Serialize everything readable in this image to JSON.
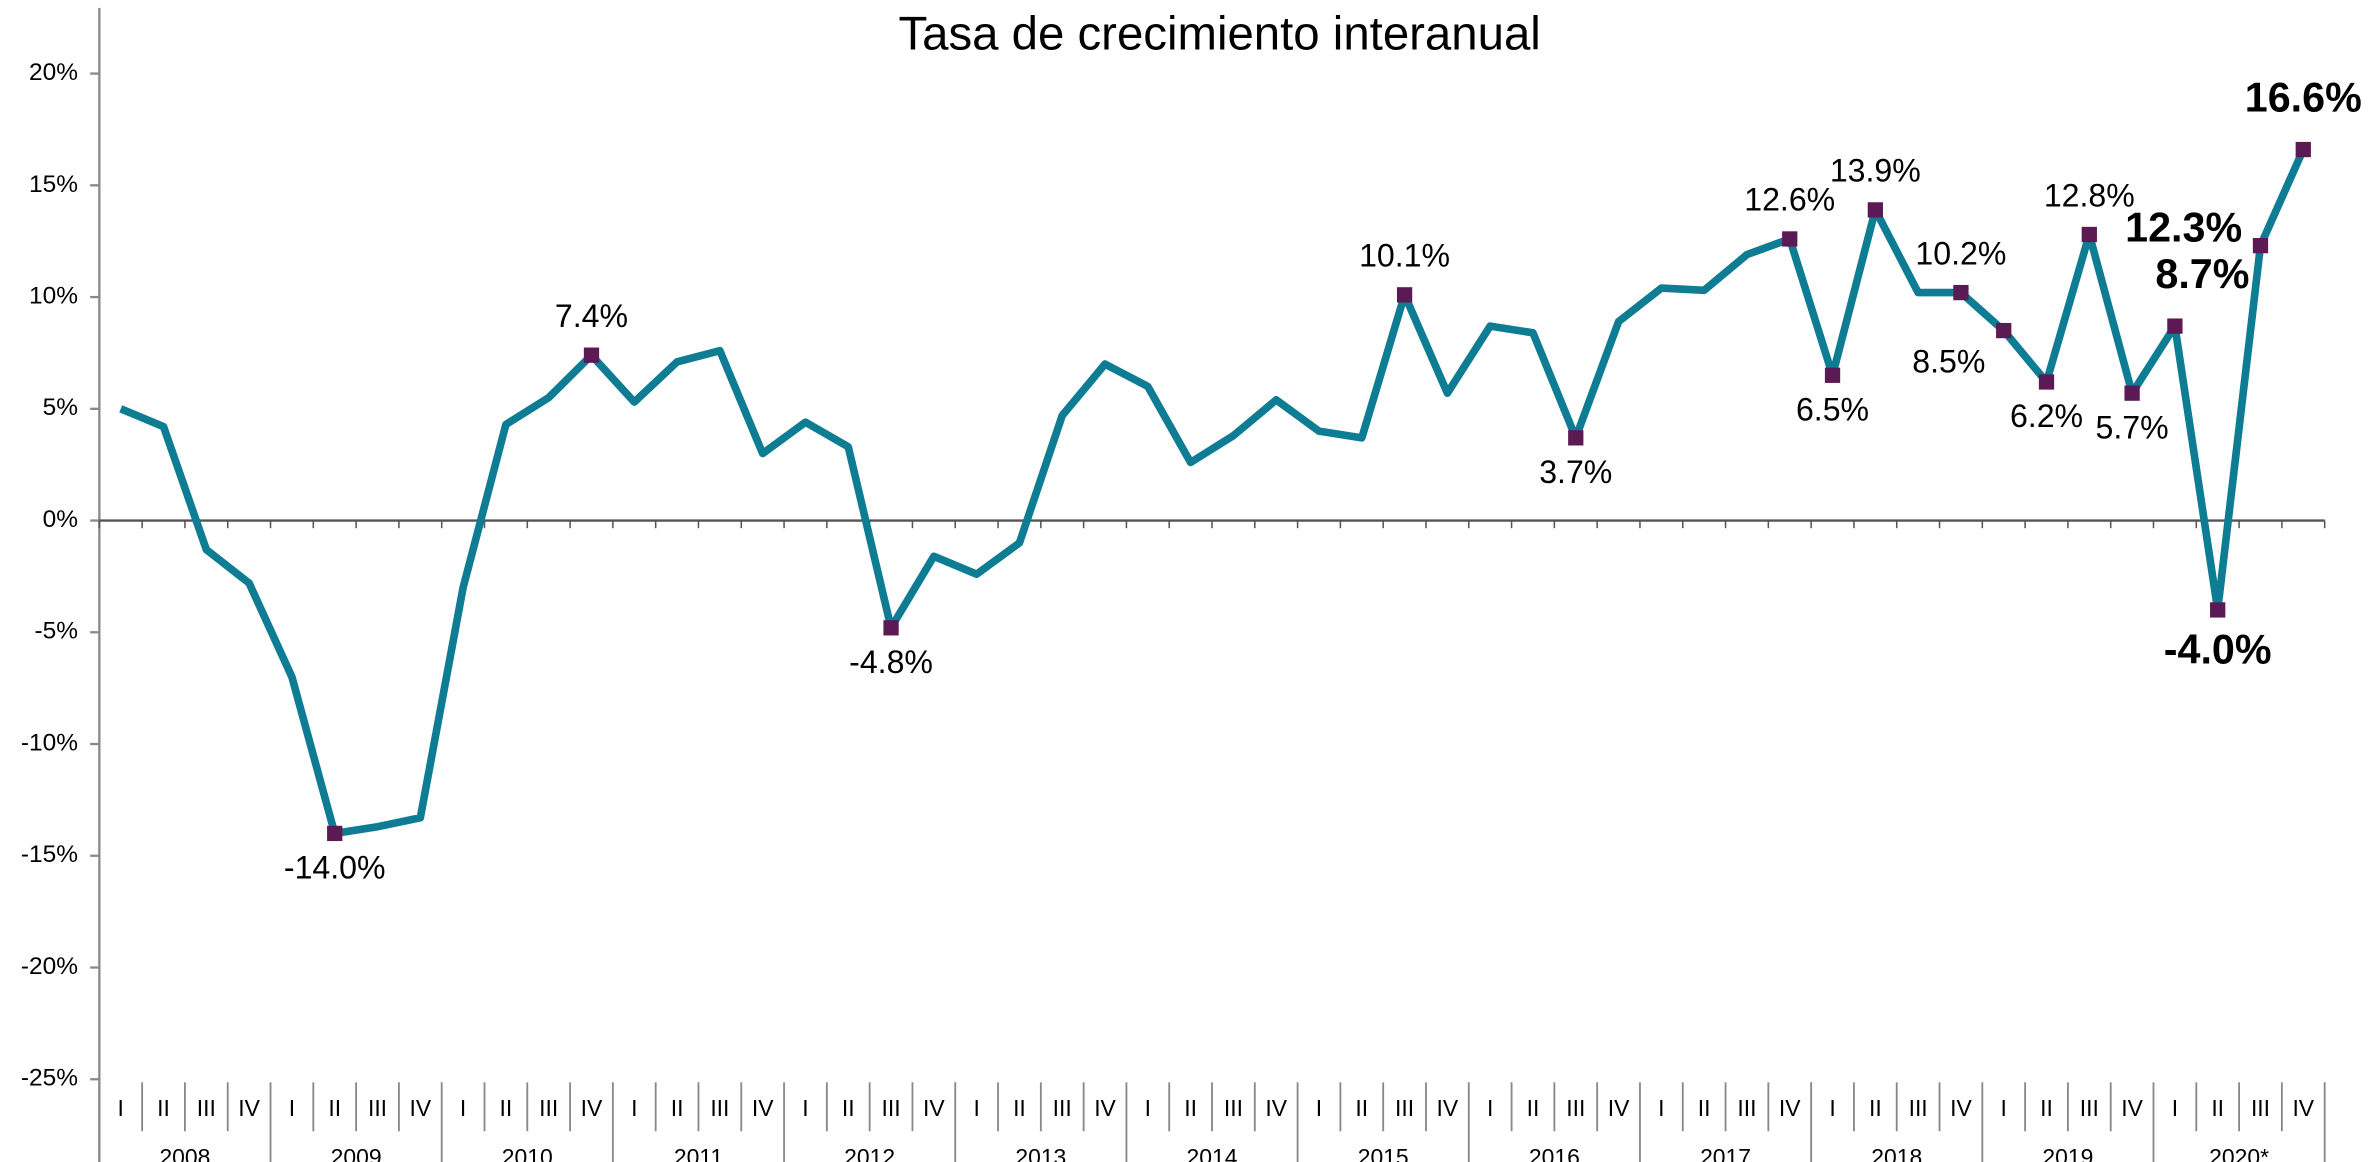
{
  "chart_data": {
    "type": "line",
    "title": "Tasa de crecimiento interanual",
    "categories": [
      "I",
      "II",
      "III",
      "IV",
      "I",
      "II",
      "III",
      "IV",
      "I",
      "II",
      "III",
      "IV",
      "I",
      "II",
      "III",
      "IV",
      "I",
      "II",
      "III",
      "IV",
      "I",
      "II",
      "III",
      "IV",
      "I",
      "II",
      "III",
      "IV",
      "I",
      "II",
      "III",
      "IV",
      "I",
      "II",
      "III",
      "IV",
      "I",
      "II",
      "III",
      "IV",
      "I",
      "II",
      "III",
      "IV",
      "I",
      "II",
      "III",
      "IV",
      "I",
      "II",
      "III",
      "IV"
    ],
    "years": [
      "2008",
      "2009",
      "2010",
      "2011",
      "2012",
      "2013",
      "2014",
      "2015",
      "2016",
      "2017",
      "2018",
      "2019",
      "2020*"
    ],
    "series": [
      {
        "color": "#0e7c93",
        "marker_color": "#5c1a55",
        "values": [
          5.0,
          4.2,
          -1.3,
          -2.8,
          -7.0,
          -14.0,
          -13.7,
          -13.3,
          -3.0,
          4.3,
          5.5,
          7.4,
          5.3,
          7.1,
          7.6,
          3.0,
          4.4,
          3.3,
          -4.8,
          -1.6,
          -2.4,
          -1.0,
          4.7,
          7.0,
          6.0,
          2.6,
          3.8,
          5.4,
          4.0,
          3.7,
          10.1,
          5.7,
          8.7,
          8.4,
          3.7,
          8.9,
          10.4,
          10.3,
          11.9,
          12.6,
          6.5,
          13.9,
          10.2,
          10.2,
          8.5,
          6.2,
          12.8,
          5.7,
          8.7,
          -4.0,
          12.3,
          16.6
        ],
        "value_labels": [
          null,
          null,
          null,
          null,
          null,
          "-14.0%",
          null,
          null,
          null,
          null,
          null,
          "7.4%",
          null,
          null,
          null,
          null,
          null,
          null,
          "-4.8%",
          null,
          null,
          null,
          null,
          null,
          null,
          null,
          null,
          null,
          null,
          null,
          "10.1%",
          null,
          null,
          null,
          "3.7%",
          null,
          null,
          null,
          null,
          "12.6%",
          "6.5%",
          "13.9%",
          null,
          "10.2%",
          "8.5%",
          "6.2%",
          "12.8%",
          "5.7%",
          "8.7%",
          "-4.0%",
          "12.3%",
          "16.6%"
        ]
      }
    ],
    "ylim": [
      -25,
      20
    ],
    "yticks": [
      {
        "value": -25,
        "label": "-25%"
      },
      {
        "value": -20,
        "label": "-20%"
      },
      {
        "value": -15,
        "label": "-15%"
      },
      {
        "value": -10,
        "label": "-10%"
      },
      {
        "value": -5,
        "label": "-5%"
      },
      {
        "value": 0,
        "label": "0%"
      },
      {
        "value": 5,
        "label": "5%"
      },
      {
        "value": 10,
        "label": "10%"
      },
      {
        "value": 15,
        "label": "15%"
      },
      {
        "value": 20,
        "label": "20%"
      }
    ]
  }
}
